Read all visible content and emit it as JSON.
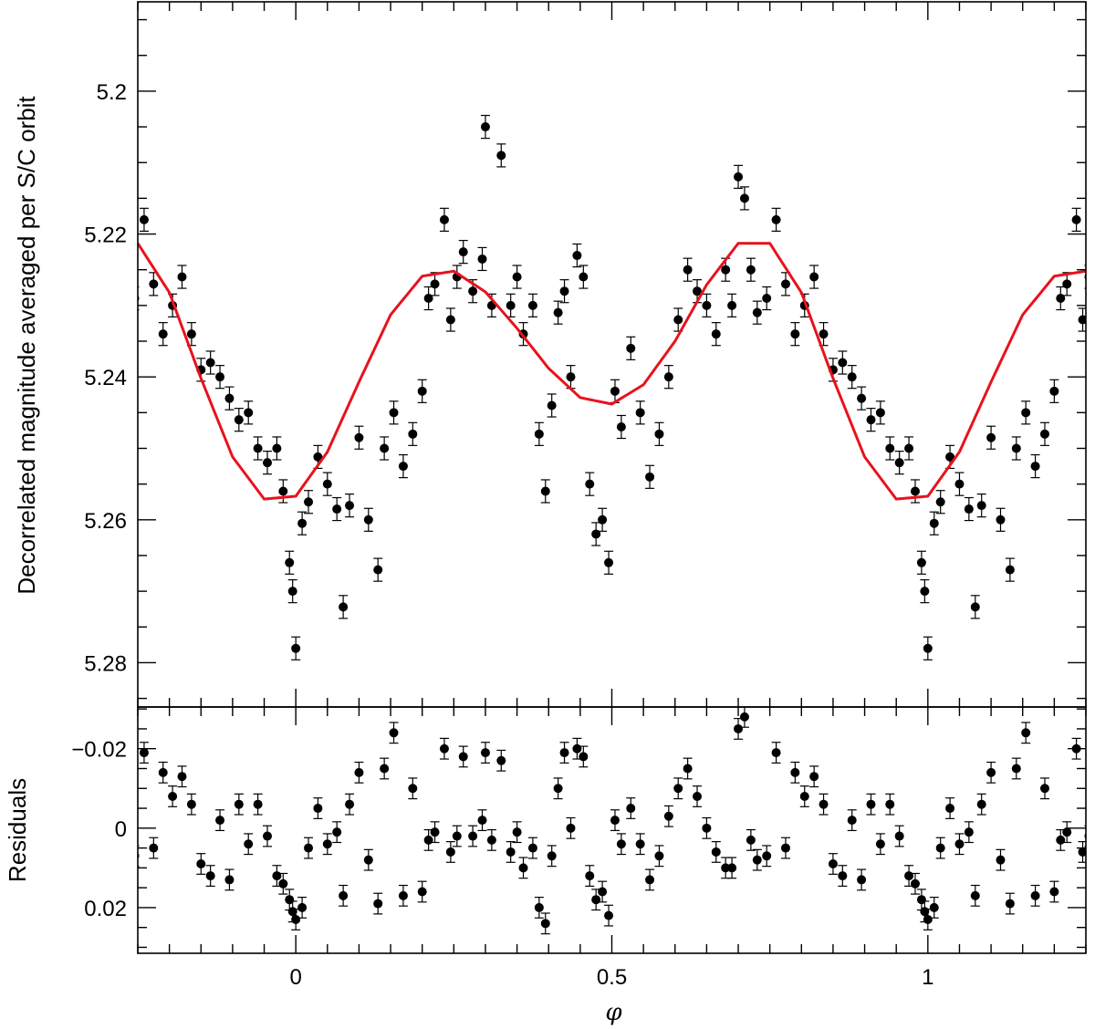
{
  "chart_data": [
    {
      "panel": "top",
      "type": "scatter",
      "ylabel": "Decorrelated magnitude averaged per S/C orbit",
      "xlim": [
        -0.25,
        1.25
      ],
      "ylim": [
        5.2862,
        5.1875
      ],
      "y_inverted": true,
      "yticks": [
        5.2,
        5.22,
        5.24,
        5.26,
        5.28
      ],
      "ytick_labels": [
        "5.2",
        "5.22",
        "5.24",
        "5.26",
        "5.28"
      ],
      "marker_color": "#000000",
      "error_bars": true,
      "points_period": 1.0,
      "points_visible_range": [
        -0.25,
        1.25
      ],
      "points": [
        [
          0.01,
          5.2605
        ],
        [
          0.02,
          5.2575
        ],
        [
          0.035,
          5.2512
        ],
        [
          0.05,
          5.255
        ],
        [
          0.065,
          5.2585
        ],
        [
          0.075,
          5.2722
        ],
        [
          0.085,
          5.258
        ],
        [
          0.1,
          5.2485
        ],
        [
          0.115,
          5.26
        ],
        [
          0.13,
          5.267
        ],
        [
          0.14,
          5.25
        ],
        [
          0.155,
          5.245
        ],
        [
          0.17,
          5.2525
        ],
        [
          0.185,
          5.248
        ],
        [
          0.2,
          5.242
        ],
        [
          0.21,
          5.229
        ],
        [
          0.22,
          5.227
        ],
        [
          0.235,
          5.218
        ],
        [
          0.245,
          5.232
        ],
        [
          0.255,
          5.226
        ],
        [
          0.265,
          5.2225
        ],
        [
          0.28,
          5.228
        ],
        [
          0.295,
          5.2235
        ],
        [
          0.3,
          5.205
        ],
        [
          0.31,
          5.23
        ],
        [
          0.325,
          5.209
        ],
        [
          0.34,
          5.23
        ],
        [
          0.35,
          5.226
        ],
        [
          0.36,
          5.234
        ],
        [
          0.375,
          5.23
        ],
        [
          0.385,
          5.248
        ],
        [
          0.395,
          5.256
        ],
        [
          0.405,
          5.244
        ],
        [
          0.415,
          5.231
        ],
        [
          0.425,
          5.228
        ],
        [
          0.435,
          5.24
        ],
        [
          0.445,
          5.223
        ],
        [
          0.455,
          5.226
        ],
        [
          0.465,
          5.255
        ],
        [
          0.475,
          5.262
        ],
        [
          0.485,
          5.26
        ],
        [
          0.495,
          5.266
        ],
        [
          0.505,
          5.242
        ],
        [
          0.515,
          5.247
        ],
        [
          0.53,
          5.236
        ],
        [
          0.545,
          5.245
        ],
        [
          0.56,
          5.254
        ],
        [
          0.575,
          5.248
        ],
        [
          0.59,
          5.24
        ],
        [
          0.605,
          5.232
        ],
        [
          0.62,
          5.225
        ],
        [
          0.635,
          5.228
        ],
        [
          0.65,
          5.23
        ],
        [
          0.665,
          5.234
        ],
        [
          0.68,
          5.225
        ],
        [
          0.69,
          5.23
        ],
        [
          0.7,
          5.212
        ],
        [
          0.71,
          5.215
        ],
        [
          0.72,
          5.225
        ],
        [
          0.73,
          5.231
        ],
        [
          0.745,
          5.229
        ],
        [
          0.76,
          5.218
        ],
        [
          0.775,
          5.227
        ],
        [
          0.79,
          5.234
        ],
        [
          0.805,
          5.23
        ],
        [
          0.82,
          5.226
        ],
        [
          0.835,
          5.234
        ],
        [
          0.85,
          5.239
        ],
        [
          0.865,
          5.238
        ],
        [
          0.88,
          5.24
        ],
        [
          0.895,
          5.243
        ],
        [
          0.91,
          5.246
        ],
        [
          0.925,
          5.245
        ],
        [
          0.94,
          5.25
        ],
        [
          0.955,
          5.252
        ],
        [
          0.97,
          5.25
        ],
        [
          0.98,
          5.256
        ],
        [
          0.99,
          5.266
        ],
        [
          1.0,
          5.278
        ],
        [
          0.995,
          5.27
        ]
      ],
      "fit_curve": {
        "color": "#e8121d",
        "x": [
          -0.25,
          -0.2,
          -0.15,
          -0.1,
          -0.05,
          0.0,
          0.05,
          0.1,
          0.15,
          0.2,
          0.25,
          0.3,
          0.35,
          0.4,
          0.45,
          0.5,
          0.55,
          0.6,
          0.65,
          0.7,
          0.75,
          0.8,
          0.85,
          0.9,
          0.95,
          1.0,
          1.05,
          1.1,
          1.15,
          1.2,
          1.25
        ],
        "y": [
          5.2213,
          5.2282,
          5.2402,
          5.2512,
          5.2571,
          5.2567,
          5.2505,
          5.2407,
          5.2313,
          5.2259,
          5.2252,
          5.2281,
          5.2332,
          5.2388,
          5.2429,
          5.2438,
          5.2411,
          5.235,
          5.2271,
          5.2213,
          5.2213,
          5.2282,
          5.2402,
          5.2512,
          5.2571,
          5.2567,
          5.2505,
          5.2407,
          5.2313,
          5.2259,
          5.2252
        ]
      }
    },
    {
      "panel": "bottom",
      "type": "scatter",
      "xlabel": "φ",
      "ylabel": "Residuals",
      "xlim": [
        -0.25,
        1.25
      ],
      "ylim": [
        0.0315,
        -0.0305
      ],
      "y_inverted": true,
      "xticks": [
        0,
        0.5,
        1
      ],
      "xtick_labels": [
        "0",
        "0.5",
        "1"
      ],
      "yticks": [
        -0.02,
        0,
        0.02
      ],
      "ytick_labels": [
        "−0.02",
        "0",
        "0.02"
      ],
      "marker_color": "#000000",
      "error_bars": true,
      "points_period": 1.0,
      "points": [
        [
          0.01,
          0.02
        ],
        [
          0.02,
          0.005
        ],
        [
          0.035,
          -0.005
        ],
        [
          0.05,
          0.004
        ],
        [
          0.065,
          0.001
        ],
        [
          0.075,
          0.017
        ],
        [
          0.085,
          -0.006
        ],
        [
          0.1,
          -0.014
        ],
        [
          0.115,
          0.008
        ],
        [
          0.13,
          0.019
        ],
        [
          0.14,
          -0.015
        ],
        [
          0.155,
          -0.024
        ],
        [
          0.17,
          0.017
        ],
        [
          0.185,
          -0.01
        ],
        [
          0.2,
          0.016
        ],
        [
          0.21,
          0.003
        ],
        [
          0.22,
          0.001
        ],
        [
          0.235,
          -0.02
        ],
        [
          0.245,
          0.006
        ],
        [
          0.255,
          0.002
        ],
        [
          0.265,
          -0.018
        ],
        [
          0.28,
          0.002
        ],
        [
          0.295,
          -0.002
        ],
        [
          0.3,
          -0.019
        ],
        [
          0.31,
          0.003
        ],
        [
          0.325,
          -0.017
        ],
        [
          0.34,
          0.006
        ],
        [
          0.35,
          0.001
        ],
        [
          0.36,
          0.01
        ],
        [
          0.375,
          0.005
        ],
        [
          0.385,
          0.02
        ],
        [
          0.395,
          0.024
        ],
        [
          0.405,
          0.007
        ],
        [
          0.415,
          -0.01
        ],
        [
          0.425,
          -0.019
        ],
        [
          0.435,
          0.0
        ],
        [
          0.445,
          -0.02
        ],
        [
          0.455,
          -0.018
        ],
        [
          0.465,
          0.012
        ],
        [
          0.475,
          0.018
        ],
        [
          0.485,
          0.016
        ],
        [
          0.495,
          0.022
        ],
        [
          0.505,
          -0.002
        ],
        [
          0.515,
          0.004
        ],
        [
          0.53,
          -0.005
        ],
        [
          0.545,
          0.004
        ],
        [
          0.56,
          0.013
        ],
        [
          0.575,
          0.007
        ],
        [
          0.59,
          -0.003
        ],
        [
          0.605,
          -0.01
        ],
        [
          0.62,
          -0.015
        ],
        [
          0.635,
          -0.008
        ],
        [
          0.65,
          0.0
        ],
        [
          0.665,
          0.006
        ],
        [
          0.68,
          0.01
        ],
        [
          0.69,
          0.01
        ],
        [
          0.7,
          -0.025
        ],
        [
          0.71,
          -0.028
        ],
        [
          0.72,
          0.003
        ],
        [
          0.73,
          0.008
        ],
        [
          0.745,
          0.007
        ],
        [
          0.76,
          -0.019
        ],
        [
          0.775,
          0.005
        ],
        [
          0.79,
          -0.014
        ],
        [
          0.805,
          -0.008
        ],
        [
          0.82,
          -0.013
        ],
        [
          0.835,
          -0.006
        ],
        [
          0.85,
          0.009
        ],
        [
          0.865,
          0.012
        ],
        [
          0.88,
          -0.002
        ],
        [
          0.895,
          0.013
        ],
        [
          0.91,
          -0.006
        ],
        [
          0.925,
          0.004
        ],
        [
          0.94,
          -0.006
        ],
        [
          0.955,
          0.002
        ],
        [
          0.97,
          0.012
        ],
        [
          0.98,
          0.014
        ],
        [
          0.99,
          0.018
        ],
        [
          1.0,
          0.023
        ],
        [
          0.995,
          0.021
        ]
      ]
    }
  ]
}
